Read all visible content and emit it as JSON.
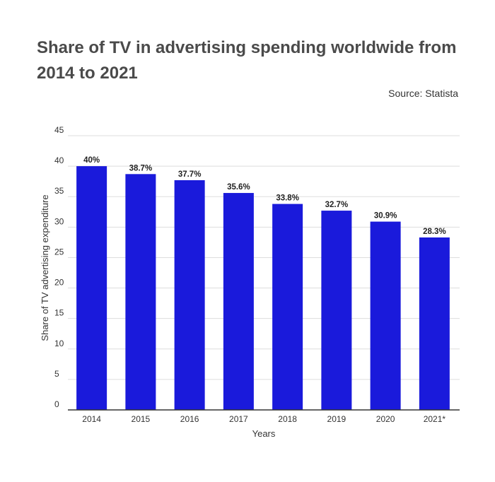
{
  "title": "Share of TV in advertising spending worldwide from 2014 to 2021",
  "source": "Source: Statista",
  "colors": {
    "bar": "#1a1adb",
    "grid": "#dddddd",
    "axis": "#333333"
  },
  "chart_data": {
    "type": "bar",
    "title": "Share of TV in advertising spending worldwide from 2014 to 2021",
    "xlabel": "Years",
    "ylabel": "Share of TV advertising expenditure",
    "categories": [
      "2014",
      "2015",
      "2016",
      "2017",
      "2018",
      "2019",
      "2020",
      "2021*"
    ],
    "values": [
      40,
      38.7,
      37.7,
      35.6,
      33.8,
      32.7,
      30.9,
      28.3
    ],
    "data_labels": [
      "40%",
      "38.7%",
      "37.7%",
      "35.6%",
      "33.8%",
      "32.7%",
      "30.9%",
      "28.3%"
    ],
    "yticks": [
      0,
      5,
      10,
      15,
      20,
      25,
      30,
      35,
      40,
      45
    ],
    "ylim": [
      0,
      45
    ],
    "grid": true,
    "legend": "none"
  }
}
